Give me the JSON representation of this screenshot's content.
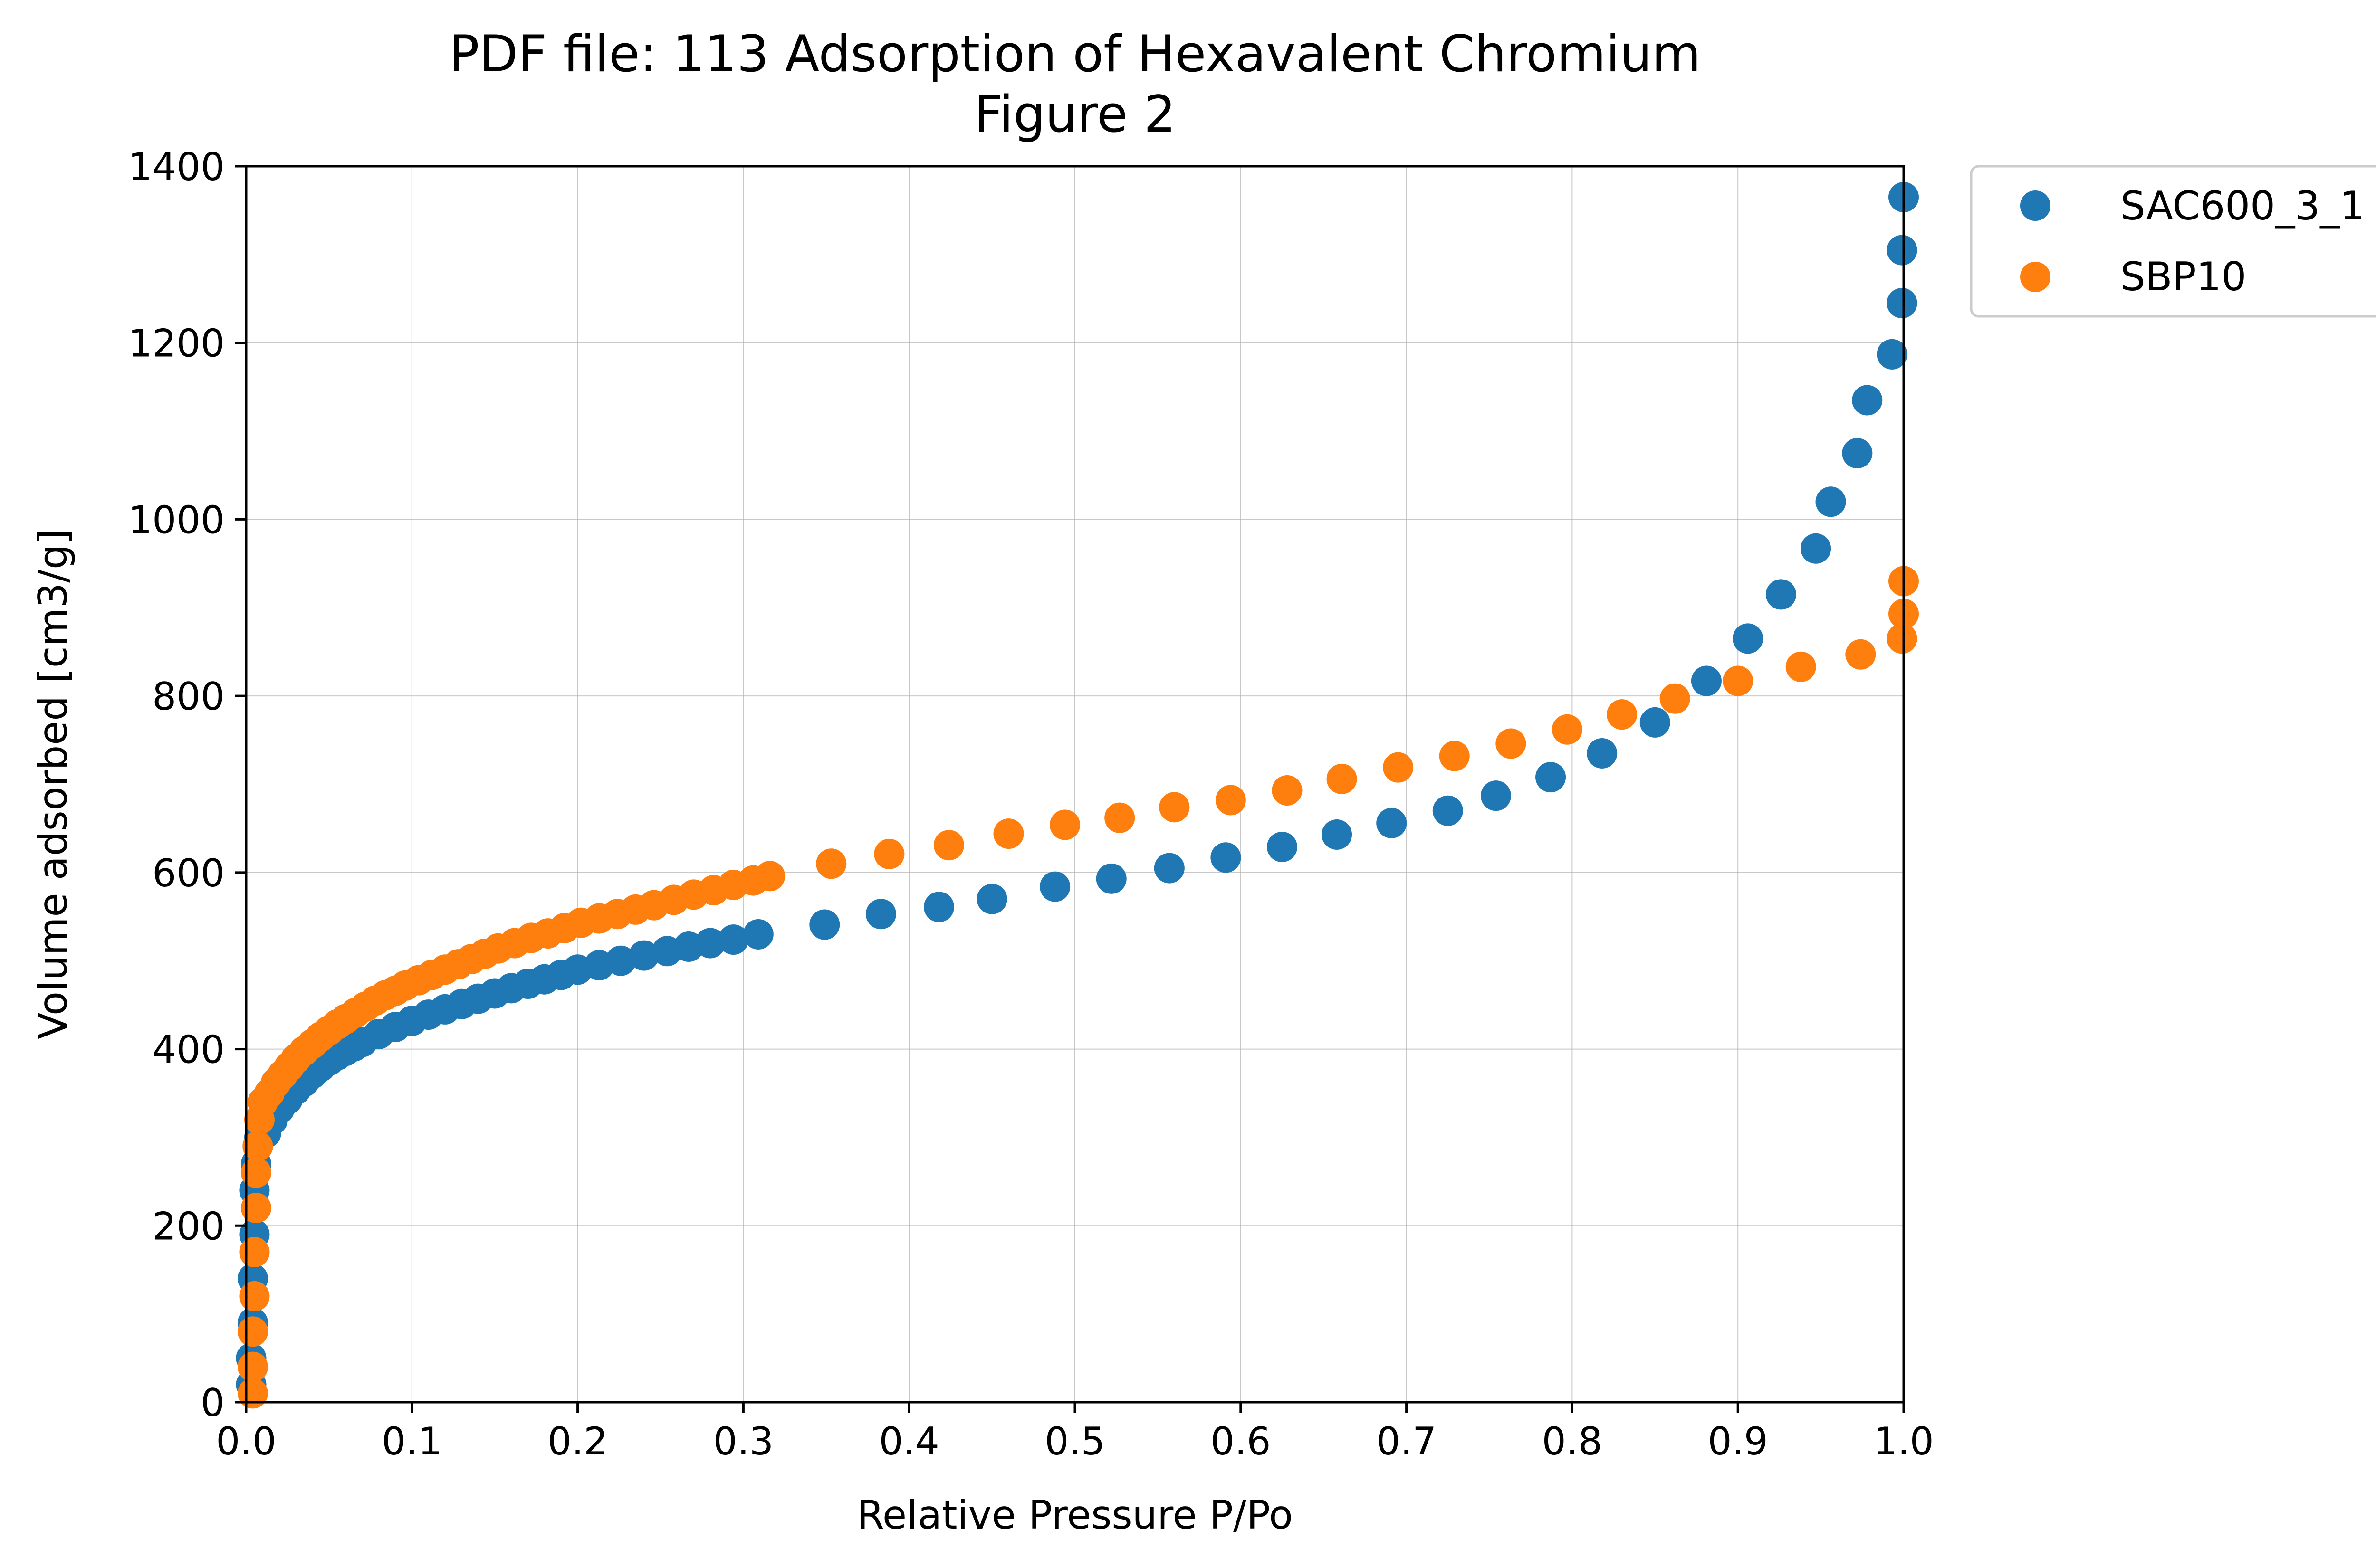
{
  "chart_data": {
    "type": "scatter",
    "title": "PDF file: 113 Adsorption of Hexavalent Chromium",
    "subtitle": "Figure 2",
    "xlabel": "Relative Pressure P/Po",
    "ylabel": "Volume adsorbed [cm3/g]",
    "xlim": [
      0.0,
      1.0
    ],
    "ylim": [
      0,
      1400
    ],
    "xticks": [
      "0.0",
      "0.1",
      "0.2",
      "0.3",
      "0.4",
      "0.5",
      "0.6",
      "0.7",
      "0.8",
      "0.9",
      "1.0"
    ],
    "yticks": [
      "0",
      "200",
      "400",
      "600",
      "800",
      "1000",
      "1200",
      "1400"
    ],
    "grid": true,
    "legend_position": "outside-top-right",
    "series": [
      {
        "name": "SAC600_3_1",
        "color": "#1f77b4",
        "points": [
          [
            0.003,
            20
          ],
          [
            0.003,
            50
          ],
          [
            0.004,
            90
          ],
          [
            0.004,
            140
          ],
          [
            0.005,
            190
          ],
          [
            0.005,
            240
          ],
          [
            0.006,
            270
          ],
          [
            0.007,
            290
          ],
          [
            0.008,
            300
          ],
          [
            0.012,
            305
          ],
          [
            0.016,
            320
          ],
          [
            0.02,
            332
          ],
          [
            0.025,
            343
          ],
          [
            0.03,
            354
          ],
          [
            0.035,
            363
          ],
          [
            0.04,
            372
          ],
          [
            0.045,
            380
          ],
          [
            0.05,
            387
          ],
          [
            0.055,
            393
          ],
          [
            0.06,
            398
          ],
          [
            0.065,
            403
          ],
          [
            0.07,
            408
          ],
          [
            0.08,
            417
          ],
          [
            0.09,
            425
          ],
          [
            0.1,
            432
          ],
          [
            0.11,
            439
          ],
          [
            0.12,
            445
          ],
          [
            0.13,
            451
          ],
          [
            0.14,
            457
          ],
          [
            0.15,
            463
          ],
          [
            0.16,
            469
          ],
          [
            0.17,
            474
          ],
          [
            0.18,
            479
          ],
          [
            0.19,
            484
          ],
          [
            0.2,
            490
          ],
          [
            0.213,
            495
          ],
          [
            0.226,
            500
          ],
          [
            0.24,
            506
          ],
          [
            0.254,
            511
          ],
          [
            0.267,
            516
          ],
          [
            0.28,
            520
          ],
          [
            0.294,
            524
          ],
          [
            0.309,
            530
          ],
          [
            0.349,
            541
          ],
          [
            0.383,
            553
          ],
          [
            0.418,
            561
          ],
          [
            0.45,
            570
          ],
          [
            0.488,
            584
          ],
          [
            0.522,
            593
          ],
          [
            0.557,
            605
          ],
          [
            0.591,
            617
          ],
          [
            0.625,
            629
          ],
          [
            0.658,
            643
          ],
          [
            0.691,
            656
          ],
          [
            0.725,
            670
          ],
          [
            0.754,
            687
          ],
          [
            0.787,
            708
          ],
          [
            0.818,
            735
          ],
          [
            0.85,
            770
          ],
          [
            0.881,
            817
          ],
          [
            0.906,
            865
          ],
          [
            0.926,
            915
          ],
          [
            0.947,
            967
          ],
          [
            0.956,
            1020
          ],
          [
            0.972,
            1075
          ],
          [
            0.978,
            1135
          ],
          [
            0.993,
            1187
          ],
          [
            0.999,
            1245
          ],
          [
            0.999,
            1305
          ],
          [
            1.0,
            1365
          ]
        ]
      },
      {
        "name": "SBP10",
        "color": "#ff7f0e",
        "points": [
          [
            0.004,
            10
          ],
          [
            0.004,
            40
          ],
          [
            0.004,
            80
          ],
          [
            0.005,
            120
          ],
          [
            0.005,
            170
          ],
          [
            0.006,
            220
          ],
          [
            0.006,
            260
          ],
          [
            0.007,
            290
          ],
          [
            0.008,
            320
          ],
          [
            0.01,
            340
          ],
          [
            0.014,
            350
          ],
          [
            0.018,
            362
          ],
          [
            0.022,
            371
          ],
          [
            0.026,
            380
          ],
          [
            0.03,
            389
          ],
          [
            0.035,
            398
          ],
          [
            0.04,
            406
          ],
          [
            0.045,
            414
          ],
          [
            0.05,
            421
          ],
          [
            0.055,
            428
          ],
          [
            0.06,
            434
          ],
          [
            0.066,
            441
          ],
          [
            0.072,
            448
          ],
          [
            0.078,
            455
          ],
          [
            0.084,
            461
          ],
          [
            0.09,
            466
          ],
          [
            0.096,
            472
          ],
          [
            0.104,
            478
          ],
          [
            0.112,
            484
          ],
          [
            0.12,
            490
          ],
          [
            0.128,
            496
          ],
          [
            0.136,
            502
          ],
          [
            0.144,
            508
          ],
          [
            0.152,
            514
          ],
          [
            0.162,
            520
          ],
          [
            0.172,
            526
          ],
          [
            0.182,
            531
          ],
          [
            0.192,
            537
          ],
          [
            0.202,
            543
          ],
          [
            0.213,
            548
          ],
          [
            0.224,
            553
          ],
          [
            0.235,
            558
          ],
          [
            0.246,
            563
          ],
          [
            0.258,
            569
          ],
          [
            0.27,
            575
          ],
          [
            0.282,
            580
          ],
          [
            0.294,
            586
          ],
          [
            0.306,
            591
          ],
          [
            0.316,
            596
          ],
          [
            0.353,
            610
          ],
          [
            0.388,
            621
          ],
          [
            0.424,
            631
          ],
          [
            0.46,
            644
          ],
          [
            0.494,
            654
          ],
          [
            0.527,
            662
          ],
          [
            0.56,
            674
          ],
          [
            0.594,
            682
          ],
          [
            0.628,
            693
          ],
          [
            0.661,
            706
          ],
          [
            0.695,
            719
          ],
          [
            0.729,
            732
          ],
          [
            0.763,
            746
          ],
          [
            0.797,
            762
          ],
          [
            0.83,
            779
          ],
          [
            0.862,
            797
          ],
          [
            0.9,
            817
          ],
          [
            0.938,
            833
          ],
          [
            0.974,
            847
          ],
          [
            0.999,
            865
          ],
          [
            1.0,
            893
          ],
          [
            1.0,
            930
          ]
        ]
      }
    ]
  }
}
